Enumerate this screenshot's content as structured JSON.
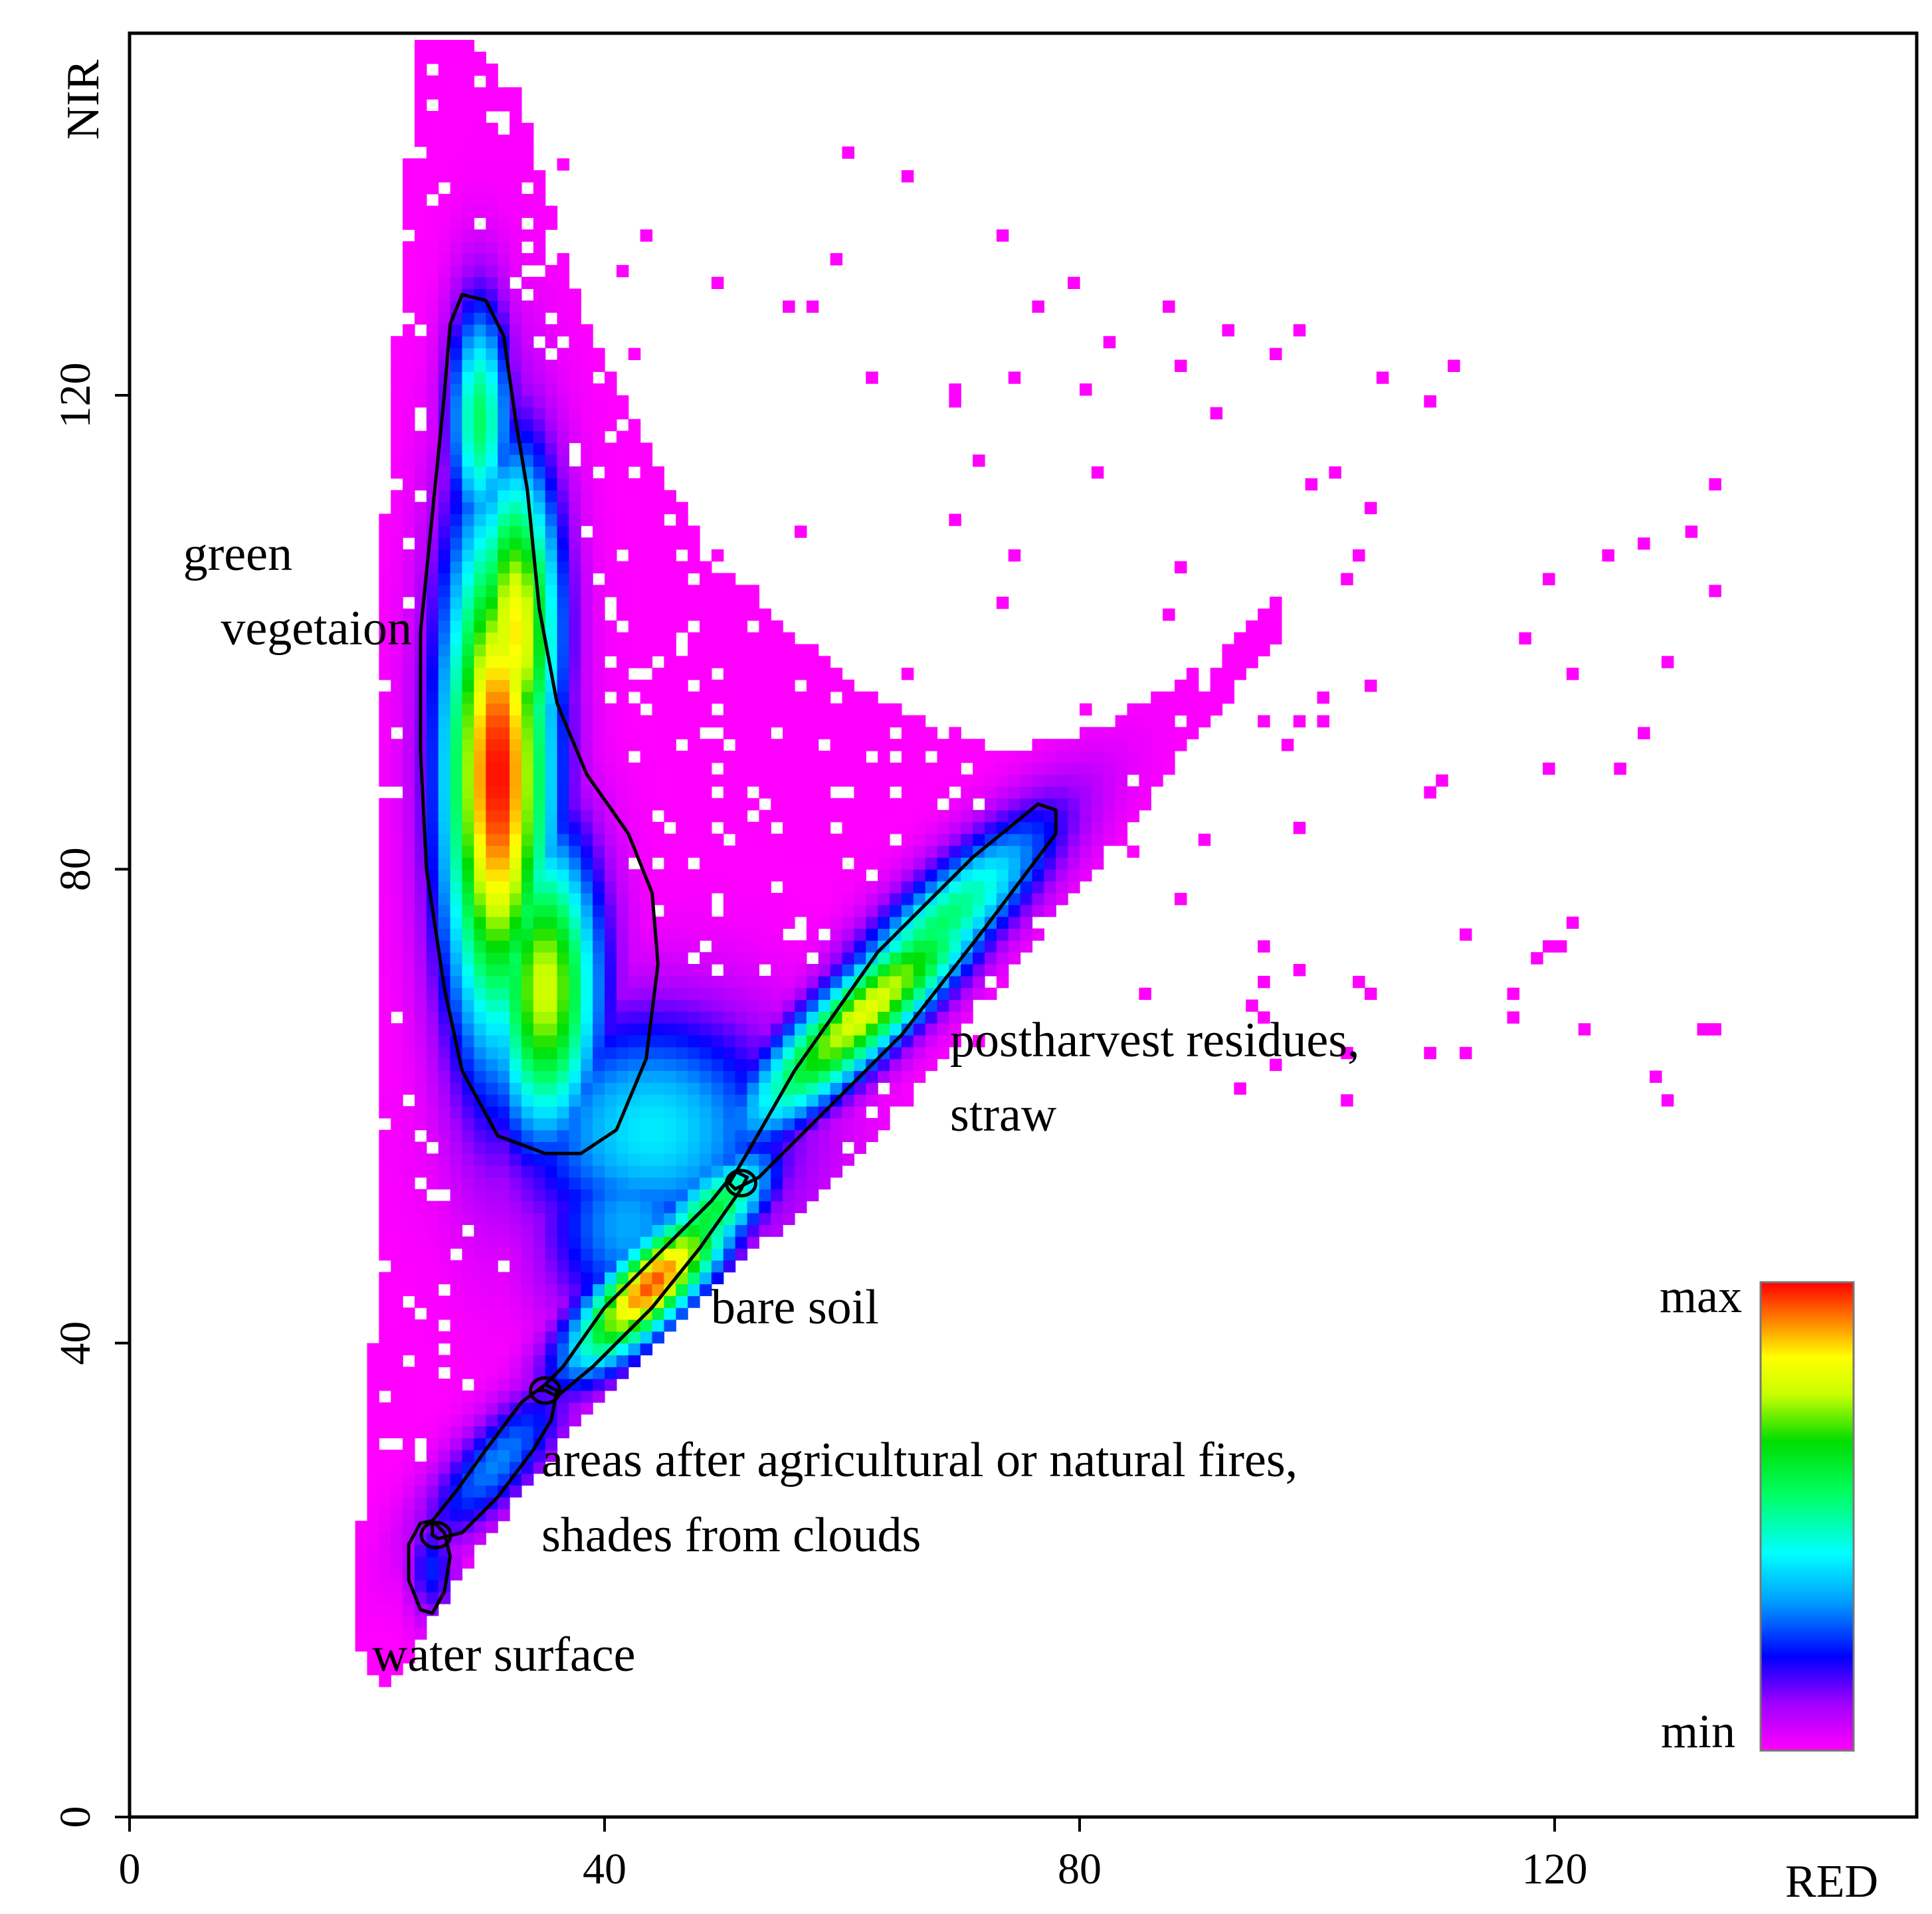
{
  "chart_data": {
    "type": "heatmap",
    "title": "",
    "xlabel": "RED",
    "ylabel": "NIR",
    "xlim": [
      0,
      150
    ],
    "ylim": [
      0,
      150
    ],
    "x_ticks": [
      0,
      40,
      80,
      120
    ],
    "y_ticks": [
      0,
      40,
      80,
      120
    ],
    "grid": false,
    "colorscale": {
      "min_label": "min",
      "max_label": "max",
      "colors": [
        "#ff00ff",
        "#8000ff",
        "#0000ff",
        "#00ffff",
        "#00ff00",
        "#ffff00",
        "#ff8000",
        "#ff0000"
      ]
    },
    "density_clusters": [
      {
        "name": "green vegetation",
        "center_red": 31,
        "center_nir": 88,
        "density": 1.0
      },
      {
        "name": "postharvest residues, straw",
        "center_red": 62,
        "center_nir": 68,
        "density": 0.78
      },
      {
        "name": "bare soil",
        "center_red": 44,
        "center_nir": 45,
        "density": 0.9
      },
      {
        "name": "areas after agricultural or natural fires, shades from clouds",
        "center_red": 31,
        "center_nir": 30,
        "density": 0.3
      },
      {
        "name": "water surface",
        "center_red": 25.5,
        "center_nir": 22,
        "density": 0.2
      }
    ],
    "regions": [
      {
        "id": "green-vegetation",
        "label_lines": [
          "green",
          "vegetaion"
        ],
        "outline": [
          [
            28,
            128.5
          ],
          [
            30,
            128
          ],
          [
            31.5,
            125
          ],
          [
            32.5,
            118
          ],
          [
            33.5,
            112
          ],
          [
            34.5,
            102
          ],
          [
            36,
            94
          ],
          [
            38.5,
            88
          ],
          [
            42,
            83
          ],
          [
            44,
            78
          ],
          [
            44.5,
            72
          ],
          [
            43.5,
            64
          ],
          [
            41,
            58
          ],
          [
            38,
            56
          ],
          [
            35,
            56
          ],
          [
            31,
            57.5
          ],
          [
            28,
            63
          ],
          [
            26.5,
            70
          ],
          [
            25,
            80
          ],
          [
            24.5,
            90
          ],
          [
            24.5,
            100
          ],
          [
            25.5,
            110
          ],
          [
            26.5,
            120
          ],
          [
            27,
            126
          ]
        ]
      },
      {
        "id": "postharvest-residues-straw",
        "label_lines": [
          "postharvest residues,",
          "straw"
        ],
        "outline": [
          [
            51,
            53
          ],
          [
            53,
            54
          ],
          [
            58,
            59
          ],
          [
            65,
            66
          ],
          [
            72,
            75
          ],
          [
            78,
            83
          ],
          [
            78,
            85
          ],
          [
            76.5,
            85.5
          ],
          [
            71,
            81
          ],
          [
            63,
            73
          ],
          [
            56,
            63
          ],
          [
            52,
            56
          ],
          [
            50.5,
            53.5
          ]
        ]
      },
      {
        "id": "bare-soil",
        "label_lines": [
          "bare soil"
        ],
        "outline": [
          [
            35,
            36
          ],
          [
            36,
            35.5
          ],
          [
            39,
            38
          ],
          [
            44,
            43
          ],
          [
            48,
            48
          ],
          [
            51.5,
            53
          ],
          [
            52,
            54
          ],
          [
            51,
            54.5
          ],
          [
            49,
            52
          ],
          [
            45,
            48
          ],
          [
            40,
            43
          ],
          [
            36.5,
            38
          ],
          [
            34.5,
            36
          ]
        ]
      },
      {
        "id": "fire-areas-cloud-shades",
        "label_lines": [
          "areas after agricultural or natural fires,",
          "shades from clouds"
        ],
        "outline": [
          [
            26,
            23.5
          ],
          [
            28,
            24
          ],
          [
            31,
            27
          ],
          [
            34,
            31
          ],
          [
            35.5,
            33.5
          ],
          [
            36,
            36
          ],
          [
            35,
            36.5
          ],
          [
            33,
            35
          ],
          [
            30,
            31
          ],
          [
            27.5,
            27.5
          ],
          [
            25.5,
            25
          ],
          [
            25.5,
            23.8
          ]
        ]
      },
      {
        "id": "water-surface",
        "label_lines": [
          "water surface"
        ],
        "outline": [
          [
            25.5,
            25
          ],
          [
            26.5,
            24
          ],
          [
            27,
            22
          ],
          [
            26.5,
            19
          ],
          [
            25.5,
            17.2
          ],
          [
            24.5,
            17.5
          ],
          [
            23.5,
            20
          ],
          [
            23.5,
            23
          ],
          [
            24.5,
            24.8
          ]
        ]
      }
    ]
  }
}
